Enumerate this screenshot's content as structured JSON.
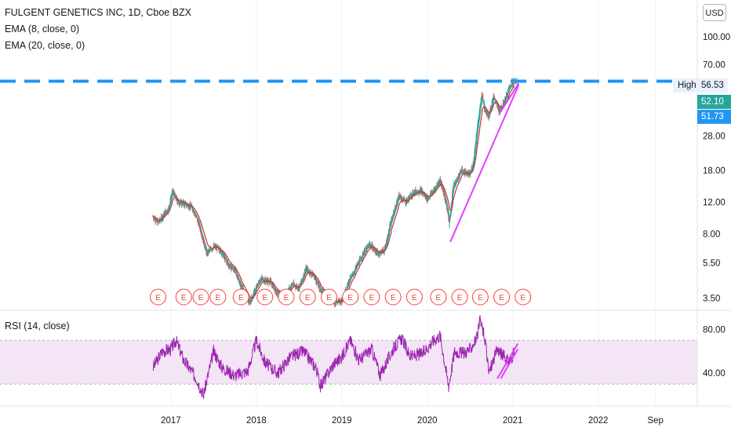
{
  "legend": {
    "symbol_line": "FULGENT GENETICS INC, 1D, Cboe BZX",
    "ema8": "EMA (8, close, 0)",
    "ema20": "EMA (20, close, 0)",
    "rsi": "RSI (14, close)"
  },
  "currency": "USD",
  "price_tags": {
    "high_label": "High",
    "high_value": "56.53",
    "ema8_value": "52.10",
    "ema20_value": "51.73"
  },
  "colors": {
    "up": "#26a69a",
    "down": "#ef5350",
    "ema8": "#26a69a",
    "ema20": "#d32f2f",
    "high_line": "#2196f3",
    "trendline": "#e040fb",
    "rsi_line": "#9c27b0",
    "rsi_band": "#f3e5f5",
    "earnings": "#f44336",
    "tag_green": "#26a69a",
    "tag_blue": "#2196f3"
  },
  "chart_data": [
    {
      "type": "line",
      "subtype": "candlestick-with-ema",
      "scale": "log",
      "y_tick_labels": [
        "3.50",
        "5.50",
        "8.00",
        "12.00",
        "18.00",
        "28.00",
        "70.00",
        "100.00"
      ],
      "y_ticks": [
        3.5,
        5.5,
        8,
        12,
        18,
        28,
        70,
        100
      ],
      "x_tick_labels": [
        "2017",
        "2018",
        "2019",
        "2020",
        "2021",
        "2022",
        "Sep"
      ],
      "x_ticks": [
        2017.0,
        2018.0,
        2019.0,
        2020.0,
        2021.0,
        2022.0,
        2022.67
      ],
      "xlim": [
        2015.0,
        2023.16
      ],
      "ylim": [
        3.0,
        160.0
      ],
      "price_path": [
        [
          2016.79,
          10.0
        ],
        [
          2016.85,
          9.2
        ],
        [
          2016.92,
          10.3
        ],
        [
          2016.97,
          11.0
        ],
        [
          2017.02,
          13.8
        ],
        [
          2017.08,
          12.0
        ],
        [
          2017.15,
          11.8
        ],
        [
          2017.25,
          11.2
        ],
        [
          2017.33,
          9.0
        ],
        [
          2017.42,
          6.2
        ],
        [
          2017.5,
          6.8
        ],
        [
          2017.58,
          6.5
        ],
        [
          2017.67,
          5.4
        ],
        [
          2017.75,
          5.0
        ],
        [
          2017.83,
          4.0
        ],
        [
          2017.92,
          3.3
        ],
        [
          2018.0,
          4.0
        ],
        [
          2018.05,
          4.5
        ],
        [
          2018.1,
          4.4
        ],
        [
          2018.17,
          4.3
        ],
        [
          2018.25,
          3.7
        ],
        [
          2018.33,
          3.6
        ],
        [
          2018.42,
          4.2
        ],
        [
          2018.5,
          4.0
        ],
        [
          2018.58,
          5.1
        ],
        [
          2018.67,
          4.7
        ],
        [
          2018.75,
          3.9
        ],
        [
          2018.83,
          3.6
        ],
        [
          2018.92,
          3.3
        ],
        [
          2019.0,
          3.4
        ],
        [
          2019.08,
          4.3
        ],
        [
          2019.17,
          5.2
        ],
        [
          2019.25,
          6.2
        ],
        [
          2019.33,
          7.0
        ],
        [
          2019.42,
          6.2
        ],
        [
          2019.5,
          6.5
        ],
        [
          2019.58,
          9.5
        ],
        [
          2019.67,
          13.0
        ],
        [
          2019.75,
          12.0
        ],
        [
          2019.83,
          13.5
        ],
        [
          2019.92,
          14.0
        ],
        [
          2020.0,
          12.5
        ],
        [
          2020.08,
          14.0
        ],
        [
          2020.15,
          16.0
        ],
        [
          2020.22,
          12.0
        ],
        [
          2020.26,
          9.0
        ],
        [
          2020.3,
          14.5
        ],
        [
          2020.4,
          18.0
        ],
        [
          2020.5,
          17.0
        ],
        [
          2020.54,
          20.0
        ],
        [
          2020.58,
          30.0
        ],
        [
          2020.64,
          48.0
        ],
        [
          2020.67,
          40.0
        ],
        [
          2020.72,
          36.0
        ],
        [
          2020.78,
          47.0
        ],
        [
          2020.84,
          38.0
        ],
        [
          2020.9,
          43.0
        ],
        [
          2020.96,
          52.0
        ],
        [
          2021.02,
          56.5
        ]
      ],
      "earnings_markers_x": [
        2016.85,
        2017.15,
        2017.35,
        2017.55,
        2017.82,
        2018.1,
        2018.35,
        2018.6,
        2018.85,
        2019.1,
        2019.35,
        2019.6,
        2019.85,
        2020.13,
        2020.38,
        2020.62,
        2020.87,
        2021.12
      ],
      "earnings_marker_label": "E",
      "high_line_value": 56.53,
      "trendlines": [
        {
          "x": [
            2020.27,
            2021.07
          ],
          "y": [
            7.2,
            54.0
          ]
        },
        {
          "x": [
            2020.84,
            2021.07
          ],
          "y": [
            37.0,
            55.0
          ]
        }
      ]
    },
    {
      "type": "line",
      "name": "RSI (14, close)",
      "y_tick_labels": [
        "40.00",
        "80.00"
      ],
      "y_ticks": [
        40,
        80
      ],
      "band": [
        30,
        70
      ],
      "ylim": [
        10,
        96
      ],
      "rsi_path": [
        [
          2016.79,
          45
        ],
        [
          2016.9,
          60
        ],
        [
          2017.0,
          62
        ],
        [
          2017.06,
          70
        ],
        [
          2017.15,
          52
        ],
        [
          2017.3,
          35
        ],
        [
          2017.38,
          20
        ],
        [
          2017.5,
          60
        ],
        [
          2017.6,
          45
        ],
        [
          2017.75,
          38
        ],
        [
          2017.9,
          42
        ],
        [
          2018.0,
          70
        ],
        [
          2018.1,
          50
        ],
        [
          2018.25,
          40
        ],
        [
          2018.4,
          55
        ],
        [
          2018.55,
          60
        ],
        [
          2018.7,
          45
        ],
        [
          2018.75,
          28
        ],
        [
          2018.9,
          48
        ],
        [
          2019.0,
          55
        ],
        [
          2019.1,
          70
        ],
        [
          2019.2,
          52
        ],
        [
          2019.35,
          62
        ],
        [
          2019.45,
          38
        ],
        [
          2019.6,
          62
        ],
        [
          2019.7,
          72
        ],
        [
          2019.8,
          55
        ],
        [
          2019.95,
          58
        ],
        [
          2020.05,
          68
        ],
        [
          2020.15,
          75
        ],
        [
          2020.25,
          28
        ],
        [
          2020.32,
          60
        ],
        [
          2020.42,
          58
        ],
        [
          2020.5,
          62
        ],
        [
          2020.58,
          72
        ],
        [
          2020.62,
          88
        ],
        [
          2020.68,
          70
        ],
        [
          2020.72,
          40
        ],
        [
          2020.82,
          62
        ],
        [
          2020.9,
          55
        ],
        [
          2020.96,
          50
        ],
        [
          2021.02,
          60
        ]
      ],
      "trendlines": [
        {
          "x": [
            2020.82,
            2021.06
          ],
          "y": [
            35,
            67
          ]
        },
        {
          "x": [
            2020.86,
            2021.06
          ],
          "y": [
            35,
            62
          ]
        }
      ]
    }
  ]
}
